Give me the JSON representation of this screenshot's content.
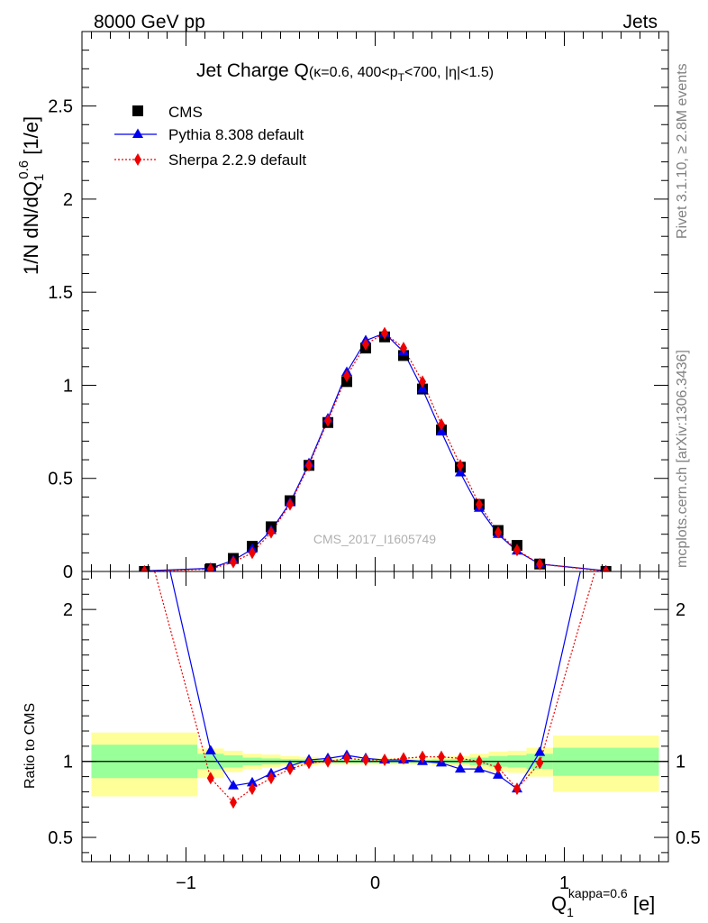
{
  "header": {
    "left": "8000 GeV pp",
    "right": "Jets"
  },
  "side": {
    "rivet": "Rivet 3.1.10, ≥ 2.8M events",
    "mcplots": "mcplots.cern.ch [arXiv:1306.3436]"
  },
  "title": {
    "main": "Jet Charge Q",
    "detail_a": "(κ=0.6, 400<p",
    "detail_sub": "T",
    "detail_b": "<700, |η|<1.5)"
  },
  "ylabel": {
    "a": "1/N dN/dQ",
    "sub": "1",
    "sup": "0.6",
    "b": " [1/e]"
  },
  "xlabel": {
    "a": "Q",
    "sub": "1",
    "sup": "kappa=0.6",
    "b": " [e]"
  },
  "ratio_label": "Ratio to CMS",
  "watermark": "CMS_2017_I1605749",
  "legend": {
    "cms": "CMS",
    "pythia": "Pythia 8.308 default",
    "sherpa": "Sherpa 2.2.9 default"
  },
  "colors": {
    "cms": "#000000",
    "pythia": "#0000ee",
    "sherpa": "#ee0000",
    "band_inner": "#99ff99",
    "band_outer": "#ffff99"
  },
  "chart_data": [
    {
      "type": "scatter",
      "panel": "main",
      "xlim": [
        -1.55,
        1.55
      ],
      "ylim": [
        0,
        2.9
      ],
      "yticks": [
        0,
        0.5,
        1,
        1.5,
        2,
        2.5
      ],
      "xticks": [
        -1,
        0,
        1
      ],
      "x": [
        -1.22,
        -0.87,
        -0.75,
        -0.65,
        -0.55,
        -0.45,
        -0.35,
        -0.25,
        -0.15,
        -0.05,
        0.05,
        0.15,
        0.25,
        0.35,
        0.45,
        0.55,
        0.65,
        0.75,
        0.87,
        1.22
      ],
      "series": [
        {
          "name": "CMS",
          "marker": "square",
          "values": [
            0.0,
            0.015,
            0.07,
            0.135,
            0.24,
            0.38,
            0.57,
            0.8,
            1.02,
            1.2,
            1.26,
            1.16,
            0.98,
            0.76,
            0.56,
            0.36,
            0.22,
            0.14,
            0.04,
            0.0
          ]
        },
        {
          "name": "Pythia 8.308 default",
          "marker": "triangle",
          "line": "solid",
          "values": [
            0.003,
            0.017,
            0.06,
            0.12,
            0.22,
            0.37,
            0.58,
            0.82,
            1.07,
            1.24,
            1.28,
            1.18,
            0.98,
            0.75,
            0.53,
            0.34,
            0.2,
            0.11,
            0.04,
            0.004
          ]
        },
        {
          "name": "Sherpa 2.2.9 default",
          "marker": "diamond",
          "line": "dotted",
          "values": [
            0.0,
            0.013,
            0.05,
            0.1,
            0.21,
            0.36,
            0.57,
            0.81,
            1.05,
            1.22,
            1.28,
            1.2,
            1.02,
            0.79,
            0.57,
            0.36,
            0.21,
            0.115,
            0.04,
            0.0
          ]
        }
      ]
    },
    {
      "type": "line",
      "panel": "ratio",
      "ylabel": "Ratio to CMS",
      "xlabel": "Q1 kappa=0.6 [e]",
      "xlim": [
        -1.55,
        1.55
      ],
      "ylim": [
        0.34,
        2.25
      ],
      "yticks": [
        0.5,
        1,
        2
      ],
      "xticks": [
        -1,
        0,
        1
      ],
      "x": [
        -1.22,
        -0.87,
        -0.75,
        -0.65,
        -0.55,
        -0.45,
        -0.35,
        -0.25,
        -0.15,
        -0.05,
        0.05,
        0.15,
        0.25,
        0.35,
        0.45,
        0.55,
        0.65,
        0.75,
        0.87,
        1.22
      ],
      "bands": {
        "edges": [
          -1.5,
          -0.94,
          -0.8,
          -0.7,
          -0.6,
          -0.5,
          -0.4,
          -0.3,
          -0.2,
          -0.1,
          0.0,
          0.1,
          0.2,
          0.3,
          0.4,
          0.5,
          0.6,
          0.7,
          0.8,
          0.94,
          1.5
        ],
        "inner_lo": [
          0.89,
          0.95,
          0.96,
          0.975,
          0.98,
          0.985,
          0.987,
          0.99,
          0.99,
          0.99,
          0.99,
          0.99,
          0.99,
          0.987,
          0.985,
          0.975,
          0.965,
          0.96,
          0.95,
          0.905
        ],
        "inner_hi": [
          1.11,
          1.05,
          1.04,
          1.025,
          1.02,
          1.015,
          1.013,
          1.01,
          1.01,
          1.01,
          1.01,
          1.01,
          1.01,
          1.013,
          1.015,
          1.025,
          1.035,
          1.04,
          1.05,
          1.09
        ],
        "outer_lo": [
          0.77,
          0.89,
          0.93,
          0.95,
          0.96,
          0.97,
          0.975,
          0.98,
          0.98,
          0.98,
          0.98,
          0.98,
          0.98,
          0.975,
          0.97,
          0.95,
          0.935,
          0.925,
          0.9,
          0.8
        ],
        "outer_hi": [
          1.19,
          1.085,
          1.07,
          1.05,
          1.045,
          1.035,
          1.03,
          1.02,
          1.02,
          1.02,
          1.02,
          1.02,
          1.02,
          1.03,
          1.035,
          1.05,
          1.065,
          1.07,
          1.09,
          1.17
        ]
      },
      "series": [
        {
          "name": "Pythia 8.308 default",
          "values": [
            3.0,
            1.07,
            0.84,
            0.86,
            0.92,
            0.97,
            1.01,
            1.02,
            1.04,
            1.02,
            1.01,
            1.01,
            1.0,
            0.99,
            0.95,
            0.95,
            0.91,
            0.82,
            1.06,
            3.0
          ]
        },
        {
          "name": "Sherpa 2.2.9 default",
          "values": [
            2.5,
            0.89,
            0.73,
            0.82,
            0.89,
            0.95,
            0.99,
            1.0,
            1.02,
            1.01,
            1.01,
            1.02,
            1.03,
            1.03,
            1.02,
            1.0,
            0.96,
            0.82,
            0.99,
            2.5
          ]
        }
      ]
    }
  ]
}
